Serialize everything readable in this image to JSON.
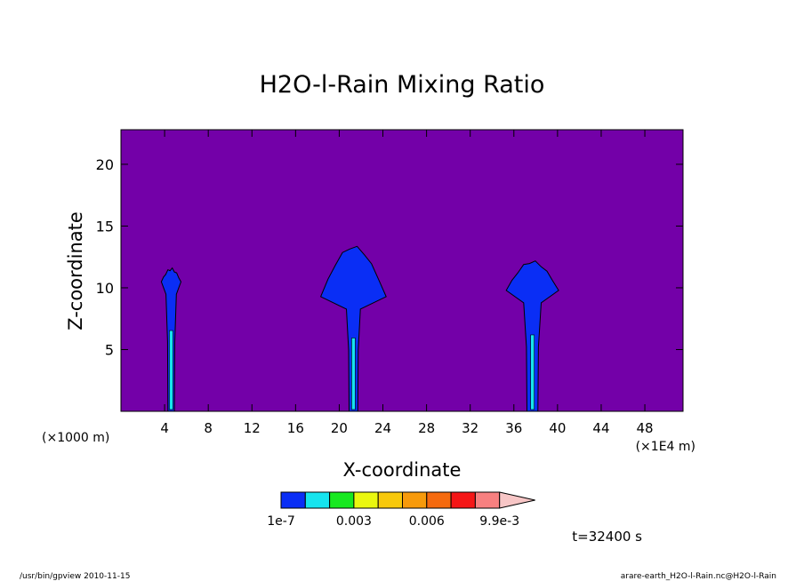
{
  "chart_data": {
    "type": "heatmap",
    "title": "H2O-l-Rain Mixing Ratio",
    "xlabel": "X-coordinate",
    "ylabel": "Z-coordinate",
    "x_unit_left": "(×1000 m)",
    "x_unit_right": "(×1E4 m)",
    "xlim": [
      0,
      51.5
    ],
    "ylim": [
      0,
      22.8
    ],
    "x_ticks": [
      4,
      8,
      12,
      16,
      20,
      24,
      28,
      32,
      36,
      40,
      44,
      48
    ],
    "y_ticks": [
      5,
      10,
      15,
      20
    ],
    "x_tick_labels": [
      "4",
      "8",
      "12",
      "16",
      "20",
      "24",
      "28",
      "32",
      "36",
      "40",
      "44",
      "48"
    ],
    "y_tick_labels": [
      "5",
      "10",
      "15",
      "20"
    ],
    "background_color": "#7300A8",
    "colorbar": {
      "colors": [
        "#0A2EF5",
        "#16E4EE",
        "#17E820",
        "#EAF70F",
        "#F7C80B",
        "#F79A0B",
        "#F56A0E",
        "#F51616",
        "#F78080",
        "#F7C6C6"
      ],
      "labels": [
        "1e-7",
        "0.003",
        "0.006",
        "9.9e-3"
      ],
      "label_positions": [
        0,
        3,
        6,
        9
      ]
    },
    "clouds": [
      {
        "x_center": 4.6,
        "x_stem_half": 0.3,
        "x_top_half": 0.9,
        "z_top": 11.4,
        "z_anvil": 10.2
      },
      {
        "x_center": 21.3,
        "x_stem_half": 0.4,
        "x_top_half": 3.0,
        "z_top": 13.2,
        "z_anvil": 9.0
      },
      {
        "x_center": 37.7,
        "x_stem_half": 0.5,
        "x_top_half": 2.4,
        "z_top": 12.0,
        "z_anvil": 9.5
      }
    ],
    "time_label": "t=32400 s"
  },
  "footer": {
    "left": "/usr/bin/gpview  2010-11-15",
    "right": "arare-earth_H2O-l-Rain.nc@H2O-l-Rain"
  }
}
